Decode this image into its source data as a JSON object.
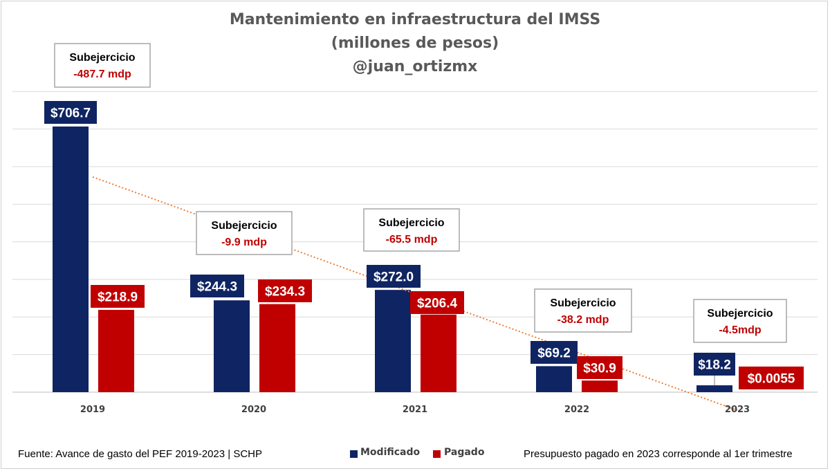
{
  "header": {
    "title": "Mantenimiento en infraestructura del IMSS",
    "subtitle": "(millones de pesos)",
    "handle": "@juan_ortizmx"
  },
  "colors": {
    "modificado": "#0f2462",
    "pagado": "#c00000",
    "trend": "#ed7d31",
    "grid": "#d9d9d9",
    "box_border": "#a6a6a6"
  },
  "chart_data": {
    "type": "bar",
    "categories": [
      "2019",
      "2020",
      "2021",
      "2022",
      "2023"
    ],
    "series": [
      {
        "name": "Modificado",
        "values": [
          706.7,
          244.3,
          272.0,
          69.2,
          18.2
        ],
        "labels": [
          "$706.7",
          "$244.3",
          "$272.0",
          "$69.2",
          "$18.2"
        ]
      },
      {
        "name": "Pagado",
        "values": [
          218.9,
          234.3,
          206.4,
          30.9,
          0.0055
        ],
        "labels": [
          "$218.9",
          "$234.3",
          "$206.4",
          "$30.9",
          "$0.0055"
        ]
      }
    ],
    "annotations": [
      {
        "category": "2019",
        "title": "Subejercicio",
        "value": "-487.7 mdp"
      },
      {
        "category": "2020",
        "title": "Subejercicio",
        "value": "-9.9 mdp"
      },
      {
        "category": "2021",
        "title": "Subejercicio",
        "value": "-65.5 mdp"
      },
      {
        "category": "2022",
        "title": "Subejercicio",
        "value": "-38.2 mdp"
      },
      {
        "category": "2023",
        "title": "Subejercicio",
        "value": "-4.5mdp"
      }
    ],
    "trendline": {
      "series": "Modificado",
      "style": "dotted",
      "type": "linear"
    },
    "ylim": [
      0,
      800
    ],
    "grid": true,
    "legend": "bottom-center",
    "title": "Mantenimiento en infraestructura del IMSS",
    "xlabel": "",
    "ylabel": ""
  },
  "footer": {
    "source": "Fuente: Avance de gasto del PEF 2019-2023 | SCHP",
    "note": "Presupuesto pagado en 2023 corresponde al 1er trimestre",
    "legend_modificado": "Modificado",
    "legend_pagado": "Pagado"
  }
}
